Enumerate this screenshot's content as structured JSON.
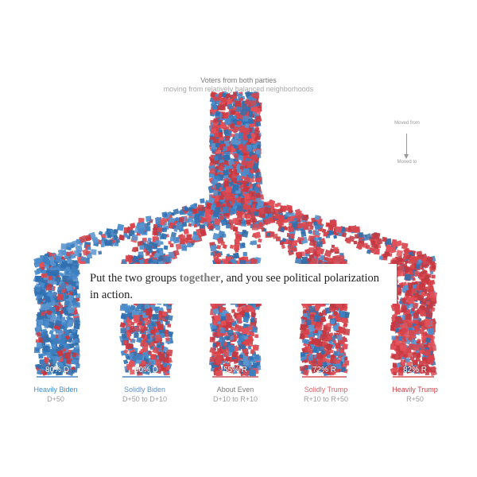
{
  "header": {
    "title": "Voters from both parties",
    "subtitle": "moving from relatively balanced neighborhoods"
  },
  "legend": {
    "from_label": "Moved from",
    "to_label": "Moved to"
  },
  "callout": {
    "before": "Put the two groups ",
    "emphasis": "together",
    "after": ", and you see political polarization in action."
  },
  "colors": {
    "democrat": "#3e7fbf",
    "republican": "#d8434b",
    "heavily_biden": "#3f8fd0",
    "solidly_biden": "#5a8fc8",
    "about_even": "#777777",
    "solidly_trump": "#d9606a",
    "heavily_trump": "#d23c45"
  },
  "chart_data": {
    "type": "flow",
    "source": "Voters from both parties",
    "destinations": [
      {
        "share_label": "80% D",
        "name": "Heavily Biden",
        "range": "D+50",
        "share": 0.8,
        "party": "D"
      },
      {
        "share_label": "60% D",
        "name": "Solidly Biden",
        "range": "D+50 to D+10",
        "share": 0.6,
        "party": "D"
      },
      {
        "share_label": "55% R",
        "name": "About Even",
        "range": "D+10 to R+10",
        "share": 0.55,
        "party": "R"
      },
      {
        "share_label": "72% R",
        "name": "Solidly Trump",
        "range": "R+10 to R+50",
        "share": 0.72,
        "party": "R"
      },
      {
        "share_label": "82% R",
        "name": "Heavily Trump",
        "range": "R+50",
        "share": 0.82,
        "party": "R"
      }
    ]
  }
}
